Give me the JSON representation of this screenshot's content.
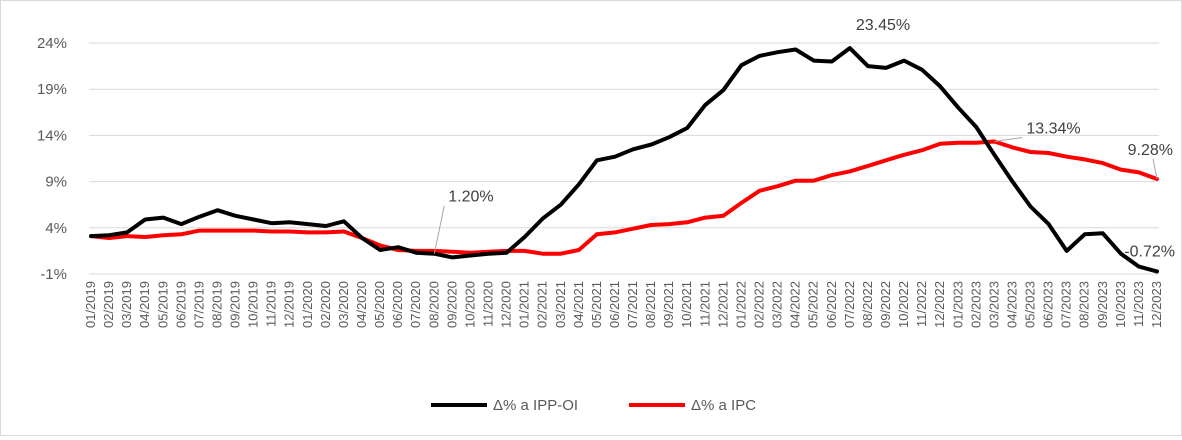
{
  "chart_data": {
    "type": "line",
    "title": "",
    "xlabel": "",
    "ylabel": "",
    "ylim": [
      -1,
      24
    ],
    "yticks": [
      -1,
      4,
      9,
      14,
      19,
      24
    ],
    "ytick_labels": [
      "-1%",
      "4%",
      "9%",
      "14%",
      "19%",
      "24%"
    ],
    "grid": true,
    "legend_position": "bottom",
    "categories": [
      "01/2019",
      "02/2019",
      "03/2019",
      "04/2019",
      "05/2019",
      "06/2019",
      "07/2019",
      "08/2019",
      "09/2019",
      "10/2019",
      "11/2019",
      "12/2019",
      "01/2020",
      "02/2020",
      "03/2020",
      "04/2020",
      "05/2020",
      "06/2020",
      "07/2020",
      "08/2020",
      "09/2020",
      "10/2020",
      "11/2020",
      "12/2020",
      "01/2021",
      "02/2021",
      "03/2021",
      "04/2021",
      "05/2021",
      "06/2021",
      "07/2021",
      "08/2021",
      "09/2021",
      "10/2021",
      "11/2021",
      "12/2021",
      "01/2022",
      "02/2022",
      "03/2022",
      "04/2022",
      "05/2022",
      "06/2022",
      "07/2022",
      "08/2022",
      "09/2022",
      "10/2022",
      "11/2022",
      "12/2022",
      "01/2023",
      "02/2023",
      "03/2023",
      "04/2023",
      "05/2023",
      "06/2023",
      "07/2023",
      "08/2023",
      "09/2023",
      "10/2023",
      "11/2023",
      "12/2023"
    ],
    "series": [
      {
        "name": "Δ% a IPP-OI",
        "color": "#000000",
        "values": [
          3.1,
          3.2,
          3.5,
          4.9,
          5.1,
          4.4,
          5.2,
          5.9,
          5.3,
          4.9,
          4.5,
          4.6,
          4.4,
          4.2,
          4.7,
          2.9,
          1.6,
          1.9,
          1.3,
          1.2,
          0.8,
          1.0,
          1.2,
          1.3,
          3.0,
          5.0,
          6.5,
          8.7,
          11.3,
          11.7,
          12.5,
          13.0,
          13.8,
          14.8,
          17.3,
          18.9,
          21.6,
          22.6,
          23.0,
          23.3,
          22.1,
          22.0,
          23.45,
          21.5,
          21.3,
          22.1,
          21.1,
          19.3,
          17.0,
          14.9,
          11.9,
          9.0,
          6.3,
          4.4,
          1.5,
          3.3,
          3.4,
          1.2,
          -0.2,
          -0.72
        ]
      },
      {
        "name": "Δ% a IPC",
        "color": "#ff0000",
        "values": [
          3.1,
          2.9,
          3.1,
          3.0,
          3.2,
          3.3,
          3.7,
          3.7,
          3.7,
          3.7,
          3.6,
          3.6,
          3.5,
          3.5,
          3.6,
          2.9,
          2.1,
          1.6,
          1.5,
          1.5,
          1.4,
          1.3,
          1.4,
          1.5,
          1.5,
          1.2,
          1.2,
          1.6,
          3.3,
          3.5,
          3.9,
          4.3,
          4.4,
          4.6,
          5.1,
          5.3,
          6.7,
          8.0,
          8.5,
          9.1,
          9.1,
          9.7,
          10.1,
          10.7,
          11.3,
          11.9,
          12.4,
          13.1,
          13.2,
          13.2,
          13.34,
          12.7,
          12.2,
          12.1,
          11.7,
          11.4,
          11.0,
          10.3,
          10.0,
          9.28
        ]
      }
    ],
    "annotations": [
      {
        "text": "1.20%",
        "series": 0,
        "index": 19
      },
      {
        "text": "23.45%",
        "series": 0,
        "index": 42
      },
      {
        "text": "13.34%",
        "series": 1,
        "index": 50
      },
      {
        "text": "9.28%",
        "series": 1,
        "index": 59
      },
      {
        "text": "-0.72%",
        "series": 0,
        "index": 59
      }
    ]
  }
}
